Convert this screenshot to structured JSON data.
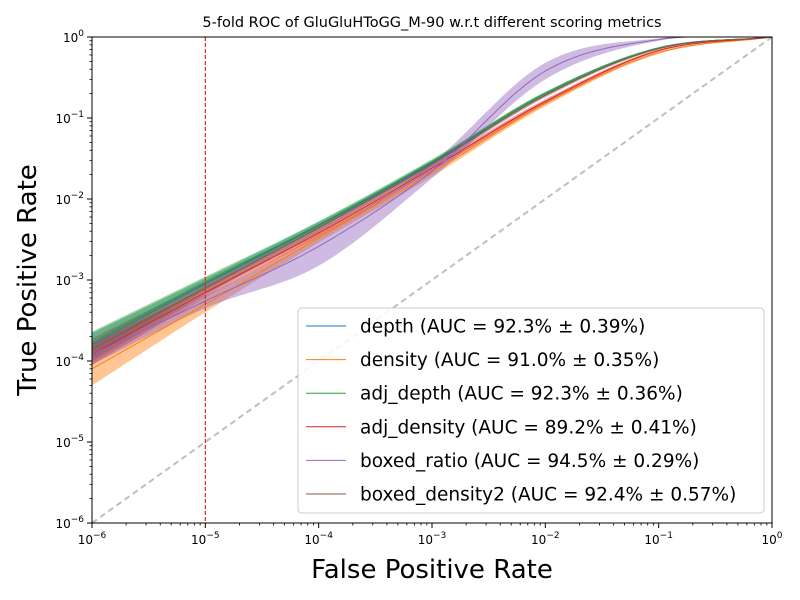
{
  "chart_data": {
    "type": "line",
    "title": "5-fold ROC of GluGluHToGG_M-90 w.r.t different scoring metrics",
    "xlabel": "False Positive Rate",
    "ylabel": "True Positive Rate",
    "xscale": "log",
    "yscale": "log",
    "xlim": [
      1e-06,
      1
    ],
    "ylim": [
      1e-06,
      1
    ],
    "x_ticks": [
      {
        "value": 1e-06,
        "base": "10",
        "exp": "−6"
      },
      {
        "value": 1e-05,
        "base": "10",
        "exp": "−5"
      },
      {
        "value": 0.0001,
        "base": "10",
        "exp": "−4"
      },
      {
        "value": 0.001,
        "base": "10",
        "exp": "−3"
      },
      {
        "value": 0.01,
        "base": "10",
        "exp": "−2"
      },
      {
        "value": 0.1,
        "base": "10",
        "exp": "−1"
      },
      {
        "value": 1,
        "base": "10",
        "exp": "0"
      }
    ],
    "y_ticks": [
      {
        "value": 1e-06,
        "base": "10",
        "exp": "−6"
      },
      {
        "value": 1e-05,
        "base": "10",
        "exp": "−5"
      },
      {
        "value": 0.0001,
        "base": "10",
        "exp": "−4"
      },
      {
        "value": 0.001,
        "base": "10",
        "exp": "−3"
      },
      {
        "value": 0.01,
        "base": "10",
        "exp": "−2"
      },
      {
        "value": 0.1,
        "base": "10",
        "exp": "−1"
      },
      {
        "value": 1,
        "base": "10",
        "exp": "0"
      }
    ],
    "grid": false,
    "legend_position": "lower-right",
    "reference_line": {
      "x": 1e-05,
      "color": "#d62728",
      "style": "dashed"
    },
    "diagonal": {
      "color": "#bfbfbf",
      "style": "dashed"
    },
    "series": [
      {
        "name": "depth (AUC = 92.3% ± 0.39%)",
        "color": "#1f77b4",
        "x": [
          1e-06,
          1e-05,
          0.0001,
          0.001,
          0.01,
          0.1,
          1
        ],
        "y": [
          0.00016,
          0.0009,
          0.0047,
          0.028,
          0.2,
          0.73,
          1
        ],
        "y_low": [
          0.00011,
          0.00075,
          0.0042,
          0.026,
          0.19,
          0.71,
          1
        ],
        "y_high": [
          0.00022,
          0.00105,
          0.0052,
          0.03,
          0.21,
          0.75,
          1
        ]
      },
      {
        "name": "density (AUC = 91.0% ± 0.35%)",
        "color": "#ff7f0e",
        "x": [
          1e-06,
          1e-05,
          0.0001,
          0.001,
          0.01,
          0.1,
          1
        ],
        "y": [
          8e-05,
          0.0005,
          0.0033,
          0.021,
          0.15,
          0.64,
          1
        ],
        "y_low": [
          5e-05,
          0.0004,
          0.0029,
          0.019,
          0.14,
          0.62,
          1
        ],
        "y_high": [
          0.00012,
          0.0006,
          0.0037,
          0.023,
          0.16,
          0.66,
          1
        ]
      },
      {
        "name": "adj_depth (AUC = 92.3% ± 0.36%)",
        "color": "#2ca02c",
        "x": [
          1e-06,
          1e-05,
          0.0001,
          0.001,
          0.01,
          0.1,
          1
        ],
        "y": [
          0.00017,
          0.00095,
          0.0048,
          0.029,
          0.2,
          0.73,
          1
        ],
        "y_low": [
          0.00012,
          0.0008,
          0.0043,
          0.027,
          0.19,
          0.71,
          1
        ],
        "y_high": [
          0.00023,
          0.0011,
          0.0053,
          0.031,
          0.21,
          0.75,
          1
        ]
      },
      {
        "name": "adj_density (AUC = 89.2% ± 0.41%)",
        "color": "#d62728",
        "x": [
          1e-06,
          1e-05,
          0.0001,
          0.001,
          0.01,
          0.1,
          1
        ],
        "y": [
          0.00012,
          0.0007,
          0.0038,
          0.024,
          0.16,
          0.68,
          1
        ],
        "y_low": [
          9e-05,
          0.0006,
          0.0034,
          0.022,
          0.15,
          0.66,
          1
        ],
        "y_high": [
          0.00016,
          0.0008,
          0.0042,
          0.026,
          0.17,
          0.7,
          1
        ]
      },
      {
        "name": "boxed_ratio (AUC = 94.5% ± 0.29%)",
        "color": "#9467bd",
        "x": [
          1e-06,
          1e-05,
          0.0001,
          0.001,
          0.01,
          0.1,
          1
        ],
        "y": [
          0.00012,
          0.00055,
          0.0026,
          0.022,
          0.38,
          0.93,
          1
        ],
        "y_low": [
          9e-05,
          0.00045,
          0.0015,
          0.018,
          0.3,
          0.9,
          1
        ],
        "y_high": [
          0.00016,
          0.00065,
          0.0034,
          0.028,
          0.48,
          0.96,
          1
        ]
      },
      {
        "name": "boxed_density2 (AUC = 92.4% ± 0.57%)",
        "color": "#8c564b",
        "x": [
          1e-06,
          1e-05,
          0.0001,
          0.001,
          0.01,
          0.1,
          1
        ],
        "y": [
          0.00014,
          0.0008,
          0.0044,
          0.027,
          0.19,
          0.72,
          1
        ],
        "y_low": [
          0.0001,
          0.00065,
          0.0039,
          0.025,
          0.18,
          0.7,
          1
        ],
        "y_high": [
          0.00019,
          0.00095,
          0.0049,
          0.029,
          0.2,
          0.74,
          1
        ]
      }
    ]
  }
}
